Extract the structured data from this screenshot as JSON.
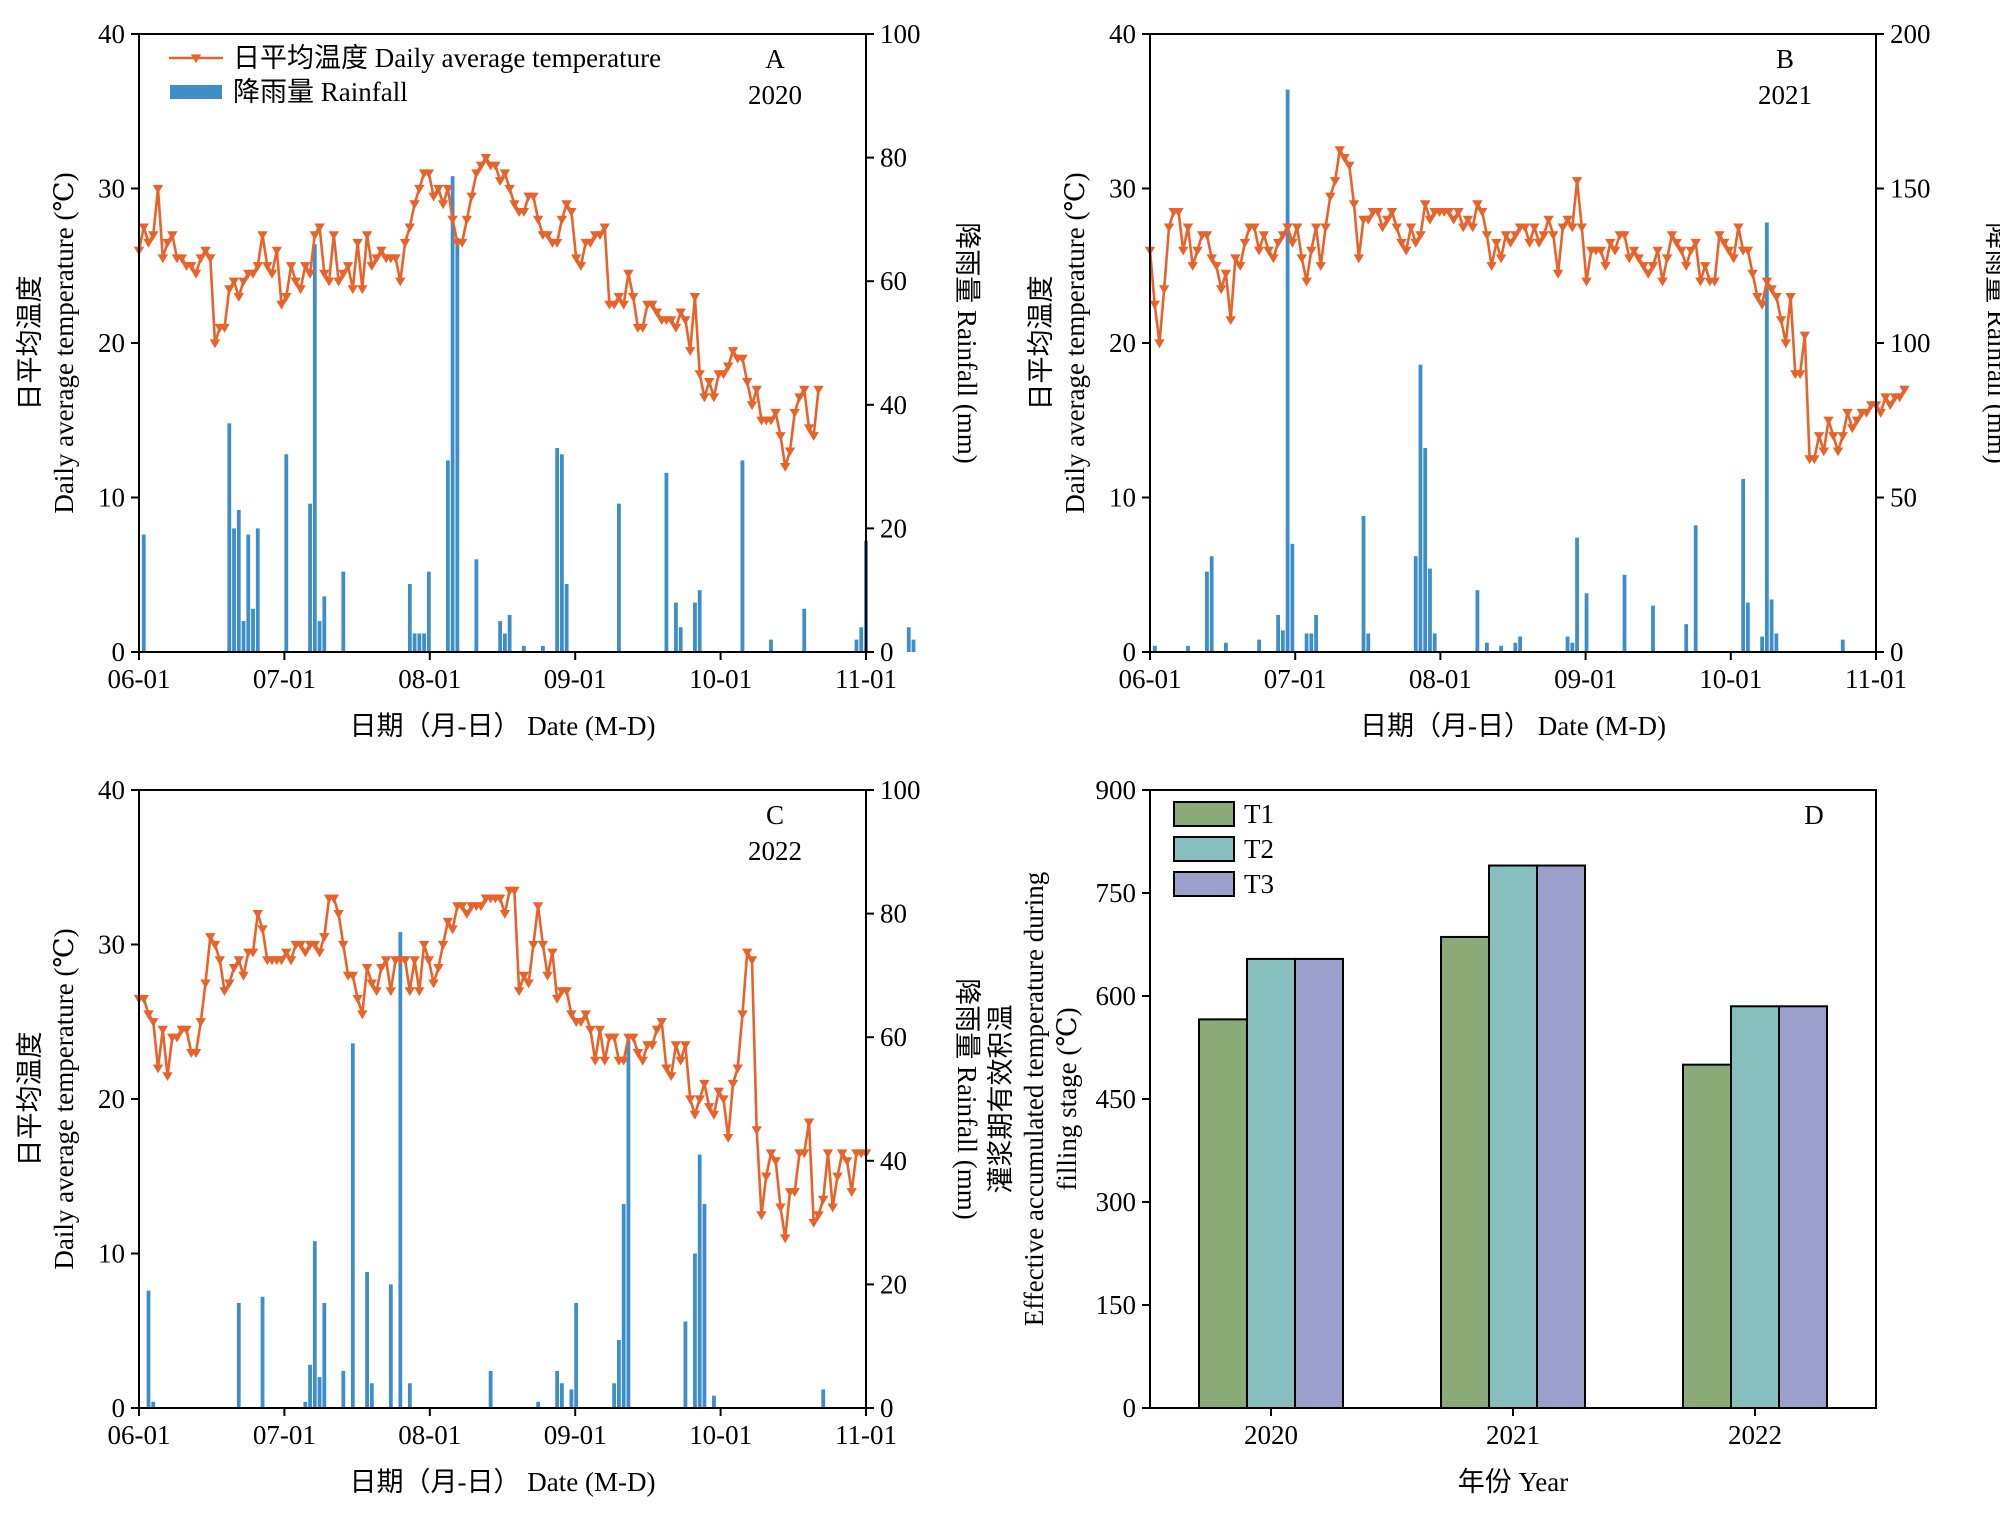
{
  "colors": {
    "temperature": "#e8632a",
    "rainfall": "#3d8ec9",
    "T1": "#8aaa78",
    "T2": "#86bfbe",
    "T3": "#9b9fcc"
  },
  "chart_data": [
    {
      "type": "line",
      "panel_label": "A",
      "year_label": "2020",
      "xlabel": "日期（月-日） Date (M-D)",
      "ylabel_cn": "日平均温度",
      "ylabel_en": "Daily average temperature (℃)",
      "y2label": "降雨量 Rainfall (mm)",
      "xticks": [
        "06-01",
        "07-01",
        "08-01",
        "09-01",
        "10-01",
        "11-01"
      ],
      "ylim": [
        0,
        40
      ],
      "yticks": [
        0,
        10,
        20,
        30,
        40
      ],
      "y2lim": [
        0,
        100
      ],
      "y2ticks": [
        0,
        20,
        40,
        60,
        80,
        100
      ],
      "legend": {
        "position": "top-left",
        "temperature": "日平均温度 Daily average temperature",
        "rainfall": "降雨量 Rainfall"
      },
      "temperature": [
        26,
        27.5,
        26.5,
        27,
        30,
        25.5,
        26.5,
        27,
        25.5,
        25.5,
        25,
        25,
        24.5,
        25.5,
        26,
        25.5,
        20,
        21,
        21,
        23.5,
        24,
        23,
        24,
        24.5,
        24.5,
        25,
        27,
        25,
        24.5,
        26,
        22.5,
        23,
        25,
        24,
        23.5,
        25,
        24.5,
        27,
        27.5,
        24.5,
        24,
        27,
        24,
        24.5,
        25,
        23.5,
        26.5,
        23.5,
        27,
        25,
        25.5,
        26,
        25.5,
        25.5,
        25.5,
        24,
        26.5,
        27.5,
        29,
        30,
        31,
        31,
        29.5,
        30,
        29,
        30,
        28,
        26.5,
        26.5,
        28,
        29.5,
        31,
        31.5,
        32,
        31.5,
        31.5,
        30.5,
        31,
        30,
        29,
        28.5,
        28.5,
        29.5,
        29.5,
        28,
        27,
        27,
        26.5,
        26.5,
        28,
        29,
        28.5,
        25.5,
        25,
        26.5,
        26.5,
        27,
        27,
        27.5,
        22.5,
        22.5,
        23,
        22.5,
        24.5,
        23,
        21,
        21,
        22.5,
        22.5,
        22,
        21.5,
        21.5,
        21.5,
        21,
        22,
        21.5,
        19.5,
        23,
        18,
        16.5,
        17.5,
        16.5,
        18,
        18,
        18.5,
        19.5,
        19,
        19,
        17.5,
        16,
        17,
        15,
        15,
        15,
        15.5,
        14,
        12,
        13,
        15.5,
        16.5,
        17,
        14.5,
        14,
        17
      ],
      "rainfall": [
        {
          "x": 1,
          "y": 19
        },
        {
          "x": 19,
          "y": 37
        },
        {
          "x": 20,
          "y": 20
        },
        {
          "x": 21,
          "y": 23
        },
        {
          "x": 22,
          "y": 5
        },
        {
          "x": 23,
          "y": 19
        },
        {
          "x": 24,
          "y": 7
        },
        {
          "x": 25,
          "y": 20
        },
        {
          "x": 31,
          "y": 32
        },
        {
          "x": 36,
          "y": 24
        },
        {
          "x": 37,
          "y": 66
        },
        {
          "x": 38,
          "y": 5
        },
        {
          "x": 39,
          "y": 9
        },
        {
          "x": 43,
          "y": 13
        },
        {
          "x": 57,
          "y": 11
        },
        {
          "x": 58,
          "y": 3
        },
        {
          "x": 59,
          "y": 3
        },
        {
          "x": 60,
          "y": 3
        },
        {
          "x": 61,
          "y": 13
        },
        {
          "x": 65,
          "y": 31
        },
        {
          "x": 66,
          "y": 77
        },
        {
          "x": 67,
          "y": 67
        },
        {
          "x": 71,
          "y": 15
        },
        {
          "x": 76,
          "y": 5
        },
        {
          "x": 77,
          "y": 3
        },
        {
          "x": 78,
          "y": 6
        },
        {
          "x": 81,
          "y": 1
        },
        {
          "x": 85,
          "y": 1
        },
        {
          "x": 88,
          "y": 33
        },
        {
          "x": 89,
          "y": 32
        },
        {
          "x": 90,
          "y": 11
        },
        {
          "x": 101,
          "y": 24
        },
        {
          "x": 111,
          "y": 29
        },
        {
          "x": 113,
          "y": 8
        },
        {
          "x": 114,
          "y": 4
        },
        {
          "x": 117,
          "y": 8
        },
        {
          "x": 118,
          "y": 10
        },
        {
          "x": 127,
          "y": 31
        },
        {
          "x": 133,
          "y": 2
        },
        {
          "x": 140,
          "y": 7
        },
        {
          "x": 151,
          "y": 2
        },
        {
          "x": 152,
          "y": 4
        },
        {
          "x": 153,
          "y": 18
        },
        {
          "x": 162,
          "y": 4
        },
        {
          "x": 163,
          "y": 2
        }
      ]
    },
    {
      "type": "line",
      "panel_label": "B",
      "year_label": "2021",
      "xlabel": "日期（月-日） Date (M-D)",
      "ylabel_cn": "日平均温度",
      "ylabel_en": "Daily average temperature (℃)",
      "y2label": "降雨量 Rainfall (mm)",
      "xticks": [
        "06-01",
        "07-01",
        "08-01",
        "09-01",
        "10-01",
        "11-01"
      ],
      "ylim": [
        0,
        40
      ],
      "yticks": [
        0,
        10,
        20,
        30,
        40
      ],
      "y2lim": [
        0,
        200
      ],
      "y2ticks": [
        0,
        50,
        100,
        150,
        200
      ],
      "temperature": [
        26,
        22.5,
        20,
        23.5,
        27.5,
        28.5,
        28.5,
        26,
        27.5,
        25,
        26,
        27,
        27,
        25.5,
        25,
        23.5,
        24.5,
        21.5,
        25.5,
        25,
        26.5,
        27.5,
        27.5,
        26,
        27,
        26,
        25.5,
        26.5,
        27,
        27.5,
        26.5,
        27.5,
        25.5,
        24,
        26,
        27.5,
        25,
        27.5,
        29.5,
        30.5,
        32.5,
        32,
        31.5,
        29,
        25.5,
        28,
        28,
        28.5,
        28.5,
        27.5,
        28,
        28.5,
        27.5,
        26.5,
        26,
        27.5,
        26.5,
        27,
        29,
        28,
        28.5,
        28.5,
        28.5,
        28.5,
        28,
        28.5,
        27.5,
        28,
        27.5,
        29,
        28.5,
        27,
        25,
        26.5,
        25.5,
        27,
        26.5,
        27,
        27.5,
        27.5,
        26.5,
        27.5,
        26.5,
        27,
        28,
        27,
        24.5,
        27.5,
        28,
        27.5,
        30.5,
        27.5,
        24,
        26,
        26,
        26,
        25,
        26.5,
        26,
        27,
        27,
        25.5,
        26,
        25.5,
        25,
        24.5,
        25,
        26,
        24,
        25.5,
        27,
        26.5,
        26,
        25,
        26,
        26.5,
        24,
        25,
        24,
        24,
        27,
        26.5,
        26,
        25.5,
        27.5,
        26,
        26,
        24.5,
        23,
        22.5,
        24,
        23.5,
        23,
        21.5,
        20,
        23,
        18,
        18,
        20.5,
        12.5,
        12.5,
        14,
        13,
        15,
        14,
        13,
        14,
        15.5,
        14.5,
        15,
        15.5,
        15.5,
        16,
        16,
        15.5,
        16.5,
        16,
        16.5,
        16.5,
        17
      ],
      "rainfall": [
        {
          "x": 1,
          "y": 2
        },
        {
          "x": 8,
          "y": 2
        },
        {
          "x": 12,
          "y": 26
        },
        {
          "x": 13,
          "y": 31
        },
        {
          "x": 16,
          "y": 3
        },
        {
          "x": 23,
          "y": 4
        },
        {
          "x": 27,
          "y": 12
        },
        {
          "x": 28,
          "y": 7
        },
        {
          "x": 29,
          "y": 182
        },
        {
          "x": 30,
          "y": 35
        },
        {
          "x": 33,
          "y": 6
        },
        {
          "x": 34,
          "y": 6
        },
        {
          "x": 35,
          "y": 12
        },
        {
          "x": 45,
          "y": 44
        },
        {
          "x": 46,
          "y": 6
        },
        {
          "x": 56,
          "y": 31
        },
        {
          "x": 57,
          "y": 93
        },
        {
          "x": 58,
          "y": 66
        },
        {
          "x": 59,
          "y": 27
        },
        {
          "x": 60,
          "y": 6
        },
        {
          "x": 69,
          "y": 20
        },
        {
          "x": 71,
          "y": 3
        },
        {
          "x": 74,
          "y": 2
        },
        {
          "x": 77,
          "y": 3
        },
        {
          "x": 78,
          "y": 5
        },
        {
          "x": 88,
          "y": 5
        },
        {
          "x": 89,
          "y": 3
        },
        {
          "x": 90,
          "y": 37
        },
        {
          "x": 92,
          "y": 19
        },
        {
          "x": 100,
          "y": 25
        },
        {
          "x": 106,
          "y": 15
        },
        {
          "x": 113,
          "y": 9
        },
        {
          "x": 115,
          "y": 41
        },
        {
          "x": 125,
          "y": 56
        },
        {
          "x": 126,
          "y": 16
        },
        {
          "x": 129,
          "y": 5
        },
        {
          "x": 130,
          "y": 139
        },
        {
          "x": 131,
          "y": 17
        },
        {
          "x": 132,
          "y": 6
        },
        {
          "x": 146,
          "y": 4
        }
      ]
    },
    {
      "type": "line",
      "panel_label": "C",
      "year_label": "2022",
      "xlabel": "日期（月-日） Date (M-D)",
      "ylabel_cn": "日平均温度",
      "ylabel_en": "Daily average temperature (℃)",
      "y2label": "降雨量 Rainfall (mm)",
      "xticks": [
        "06-01",
        "07-01",
        "08-01",
        "09-01",
        "10-01",
        "11-01"
      ],
      "ylim": [
        0,
        40
      ],
      "yticks": [
        0,
        10,
        20,
        30,
        40
      ],
      "y2lim": [
        0,
        100
      ],
      "y2ticks": [
        0,
        20,
        40,
        60,
        80,
        100
      ],
      "temperature": [
        26.5,
        26.5,
        25.5,
        25,
        22,
        24.5,
        21.5,
        24,
        24,
        24.5,
        24.5,
        23,
        23,
        25,
        27.5,
        30.5,
        30,
        29,
        27,
        27.5,
        28.5,
        29,
        28,
        29.5,
        29.5,
        32,
        31,
        29,
        29,
        29,
        29,
        29.5,
        29,
        30,
        30,
        29.5,
        30,
        30,
        29.5,
        30.5,
        33,
        33,
        32,
        30,
        28,
        28,
        26.5,
        25.5,
        28.5,
        27.5,
        27,
        28.5,
        29,
        27,
        29,
        29,
        29,
        27,
        29,
        27,
        30,
        29,
        27.5,
        28.5,
        30,
        31.5,
        31,
        32.5,
        32.5,
        32,
        32.5,
        32.5,
        32.5,
        33,
        33,
        33,
        33,
        32,
        33.5,
        33.5,
        27,
        28,
        27.5,
        30,
        32.5,
        30,
        28,
        29.5,
        26.5,
        27,
        27,
        25.5,
        25,
        25,
        25.5,
        24.5,
        22.5,
        24.5,
        22.5,
        24,
        24,
        22.5,
        22.5,
        24,
        24,
        23,
        22.5,
        23.5,
        23.5,
        24.5,
        25,
        22,
        21.5,
        23.5,
        22.5,
        23.5,
        20,
        19,
        20,
        21,
        19.5,
        19,
        20.5,
        20,
        17.5,
        21,
        22,
        25.5,
        29.5,
        29,
        18,
        12.5,
        15,
        16.5,
        16,
        13,
        11,
        14,
        14,
        16.5,
        16.5,
        18.5,
        12,
        12.5,
        13.5,
        16.5,
        13,
        15,
        16.5,
        16,
        14,
        16.5,
        16.5,
        16.5
      ],
      "rainfall": [
        {
          "x": 2,
          "y": 19
        },
        {
          "x": 3,
          "y": 1
        },
        {
          "x": 21,
          "y": 17
        },
        {
          "x": 26,
          "y": 18
        },
        {
          "x": 35,
          "y": 1
        },
        {
          "x": 36,
          "y": 7
        },
        {
          "x": 37,
          "y": 27
        },
        {
          "x": 38,
          "y": 5
        },
        {
          "x": 39,
          "y": 17
        },
        {
          "x": 43,
          "y": 6
        },
        {
          "x": 45,
          "y": 59
        },
        {
          "x": 48,
          "y": 22
        },
        {
          "x": 49,
          "y": 4
        },
        {
          "x": 53,
          "y": 20
        },
        {
          "x": 55,
          "y": 77
        },
        {
          "x": 57,
          "y": 4
        },
        {
          "x": 74,
          "y": 6
        },
        {
          "x": 84,
          "y": 1
        },
        {
          "x": 88,
          "y": 6
        },
        {
          "x": 89,
          "y": 4
        },
        {
          "x": 91,
          "y": 3
        },
        {
          "x": 92,
          "y": 17
        },
        {
          "x": 100,
          "y": 4
        },
        {
          "x": 101,
          "y": 11
        },
        {
          "x": 102,
          "y": 33
        },
        {
          "x": 103,
          "y": 60
        },
        {
          "x": 115,
          "y": 14
        },
        {
          "x": 117,
          "y": 25
        },
        {
          "x": 118,
          "y": 41
        },
        {
          "x": 119,
          "y": 33
        },
        {
          "x": 121,
          "y": 2
        },
        {
          "x": 144,
          "y": 3
        }
      ]
    },
    {
      "type": "bar",
      "panel_label": "D",
      "categories": [
        "2020",
        "2021",
        "2022"
      ],
      "xlabel": "年份 Year",
      "ylabel_cn": "灌浆期有效积温",
      "ylabel_en1": "Effective accumulated temperature during",
      "ylabel_en2": "filling stage (℃)",
      "ylim": [
        0,
        900
      ],
      "yticks": [
        0,
        150,
        300,
        450,
        600,
        750,
        900
      ],
      "legend": {
        "position": "top-left"
      },
      "series": [
        {
          "name": "T1",
          "values": [
            566,
            686,
            500
          ]
        },
        {
          "name": "T2",
          "values": [
            654,
            790,
            585
          ]
        },
        {
          "name": "T3",
          "values": [
            654,
            790,
            585
          ]
        }
      ]
    }
  ]
}
